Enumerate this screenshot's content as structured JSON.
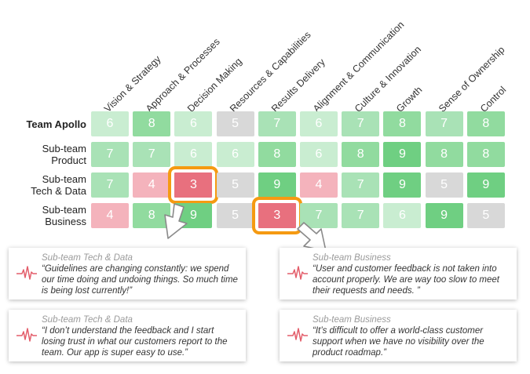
{
  "heatmap": {
    "columns": [
      "Vision & Strategy",
      "Approach & Processes",
      "Decision Making",
      "Resources & Capabilities",
      "Results Delivery",
      "Alignment & Communication",
      "Culture & Innovation",
      "Growth",
      "Sense of Ownership",
      "Control"
    ],
    "rows": [
      {
        "label_lines": [
          "Team Apollo"
        ],
        "bold": true,
        "values": [
          6,
          8,
          6,
          5,
          7,
          6,
          7,
          8,
          7,
          8
        ]
      },
      {
        "label_lines": [
          "Sub-team",
          "Product"
        ],
        "bold": false,
        "values": [
          7,
          7,
          6,
          6,
          8,
          6,
          8,
          9,
          8,
          8
        ]
      },
      {
        "label_lines": [
          "Sub-team",
          "Tech & Data"
        ],
        "bold": false,
        "values": [
          7,
          4,
          3,
          5,
          9,
          4,
          7,
          9,
          5,
          9
        ]
      },
      {
        "label_lines": [
          "Sub-team",
          "Business"
        ],
        "bold": false,
        "values": [
          4,
          8,
          9,
          5,
          3,
          7,
          7,
          6,
          9,
          5
        ]
      }
    ],
    "highlighted": [
      {
        "row": 2,
        "col": 2
      },
      {
        "row": 3,
        "col": 4
      }
    ],
    "colors": {
      "3": "#e8707e",
      "4": "#f4b3bc",
      "5": "#d8d8d8",
      "6": "#c9edd1",
      "7": "#a9e2b6",
      "8": "#91db9f",
      "9": "#6fcf82",
      "highlight": "#f59a12"
    }
  },
  "quotes": [
    {
      "source": "Sub-team Tech & Data",
      "text": "“Guidelines are changing constantly: we spend our time doing and undoing things. So much time is being lost currently!”",
      "icon": "pulse-icon"
    },
    {
      "source": "Sub-team Business",
      "text": "“User and customer feedback is not taken into account properly. We are way too slow to meet their requests and needs. ”",
      "icon": "pulse-icon"
    },
    {
      "source": "Sub-team Tech & Data",
      "text": "“I don’t understand the feedback and I start losing trust in what our customers report to the team. Our app is super easy to use.”",
      "icon": "pulse-icon"
    },
    {
      "source": "Sub-team Business",
      "text": "“It’s difficult to offer a world-class customer support when we have no visibility over the product roadmap.”",
      "icon": "pulse-icon"
    }
  ]
}
